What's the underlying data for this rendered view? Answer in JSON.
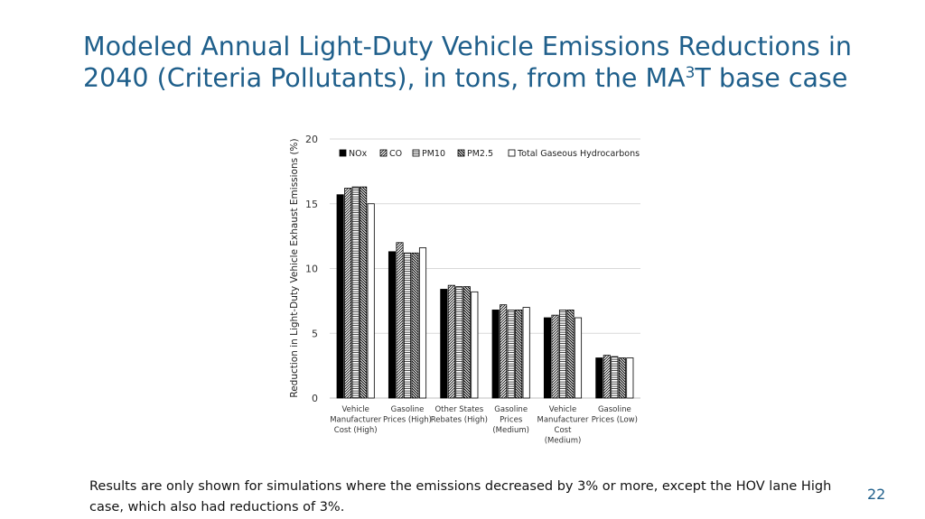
{
  "slide": {
    "title_part1": "Modeled Annual Light-Duty Vehicle Emissions Reductions in 2040 (Criteria Pollutants), in tons, from the MA",
    "title_sup": "3",
    "title_part2": "T base case",
    "footnote": "Results are only shown for simulations where the emissions decreased by 3% or more, except the HOV lane High case, which also had reductions of 3%.",
    "page_number": "22"
  },
  "chart_data": {
    "type": "bar",
    "title": "",
    "xlabel": "",
    "ylabel": "Reduction in Light-Duty Vehicle Exhaust Emissions (%)",
    "ylim": [
      0,
      20
    ],
    "yticks": [
      "0",
      "5",
      "10",
      "15",
      "20"
    ],
    "grid": true,
    "legend_position": "top",
    "categories": [
      [
        "Vehicle",
        "Manufacturer",
        "Cost (High)"
      ],
      [
        "Gasoline",
        "Prices (High)"
      ],
      [
        "Other States",
        "Rebates (High)"
      ],
      [
        "Gasoline",
        "Prices",
        "(Medium)"
      ],
      [
        "Vehicle",
        "Manufacturer",
        "Cost",
        "(Medium)"
      ],
      [
        "Gasoline",
        "Prices (Low)"
      ]
    ],
    "series": [
      {
        "name": "NOx",
        "pattern": "solid",
        "color": "#000000",
        "values": [
          15.7,
          11.3,
          8.4,
          6.8,
          6.2,
          3.1
        ]
      },
      {
        "name": "CO",
        "pattern": "diagonal-up",
        "color": "#000000",
        "values": [
          16.2,
          12.0,
          8.7,
          7.2,
          6.4,
          3.3
        ]
      },
      {
        "name": "PM10",
        "pattern": "horizontal",
        "color": "#000000",
        "values": [
          16.3,
          11.2,
          8.6,
          6.8,
          6.8,
          3.2
        ]
      },
      {
        "name": "PM2.5",
        "pattern": "diagonal-down",
        "color": "#000000",
        "values": [
          16.3,
          11.2,
          8.6,
          6.8,
          6.8,
          3.1
        ]
      },
      {
        "name": "Total Gaseous Hydrocarbons",
        "pattern": "empty",
        "color": "#ffffff",
        "values": [
          15.0,
          11.6,
          8.2,
          7.0,
          6.2,
          3.1
        ]
      }
    ]
  }
}
